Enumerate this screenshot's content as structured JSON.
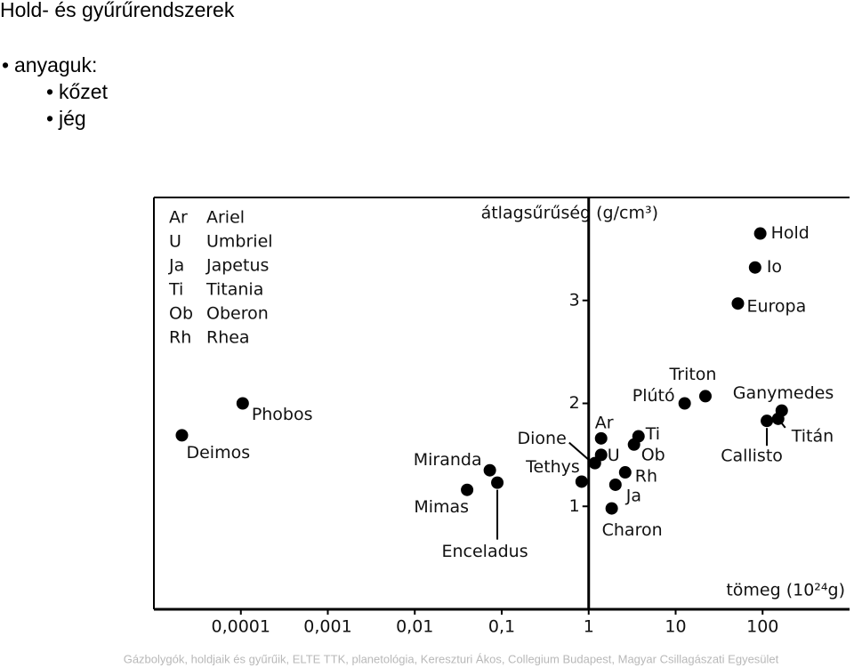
{
  "slide": {
    "title": "Hold- és gyűrűrendszerek",
    "bullets": [
      {
        "text": "anyaguk:",
        "level": 1
      },
      {
        "text": "kőzet",
        "level": 2
      },
      {
        "text": "jég",
        "level": 2
      }
    ],
    "footer": "Gázbolygók, holdjaik és gyűrűik, ELTE TTK, planetológia, Kereszturi Ákos, Collegium Budapest, Magyar Csillagászati Egyesület"
  },
  "chart_data": {
    "type": "scatter",
    "y_label": "átlagsűrűség (g/cm³)",
    "x_label": "tömeg (10²⁴g)",
    "log_x": true,
    "color": "#000000",
    "xlim": [
      1e-05,
      1000
    ],
    "ylim": [
      0,
      4
    ],
    "xticks": [
      {
        "value": 0.0001,
        "label": "0,0001"
      },
      {
        "value": 0.001,
        "label": "0,001"
      },
      {
        "value": 0.01,
        "label": "0,01"
      },
      {
        "value": 0.1,
        "label": "0,1"
      },
      1,
      10,
      100
    ],
    "yticks": [
      1,
      2,
      3
    ],
    "y_axis_at": 1,
    "point_labels": [
      "Hold",
      "Io",
      "Europa",
      "Triton",
      "Plútó",
      "Ganymedes",
      "Titán",
      "Callisto",
      "Phobos",
      "Deimos",
      "Miranda",
      "Enceladus",
      "Mimas",
      "Tethys",
      "Dione",
      "Ar",
      "U",
      "Ti",
      "Ob",
      "Rh",
      "Ja",
      "Charon"
    ],
    "x": [
      94,
      82,
      52,
      22,
      12.7,
      166,
      151,
      112,
      0.000105,
      2.1e-05,
      0.073,
      0.089,
      0.04,
      0.83,
      1.18,
      1.39,
      1.39,
      3.74,
      3.32,
      2.63,
      2.03,
      1.84
    ],
    "values": [
      3.65,
      3.32,
      2.97,
      2.07,
      2.0,
      1.93,
      1.85,
      1.83,
      2.0,
      1.69,
      1.35,
      1.23,
      1.16,
      1.24,
      1.42,
      1.66,
      1.5,
      1.68,
      1.6,
      1.33,
      1.21,
      0.98
    ],
    "key": [
      {
        "abbr": "Ar",
        "name": "Ariel"
      },
      {
        "abbr": "U",
        "name": "Umbriel"
      },
      {
        "abbr": "Ja",
        "name": "Japetus"
      },
      {
        "abbr": "Ti",
        "name": "Titania"
      },
      {
        "abbr": "Ob",
        "name": "Oberon"
      },
      {
        "abbr": "Rh",
        "name": "Rhea"
      }
    ]
  }
}
